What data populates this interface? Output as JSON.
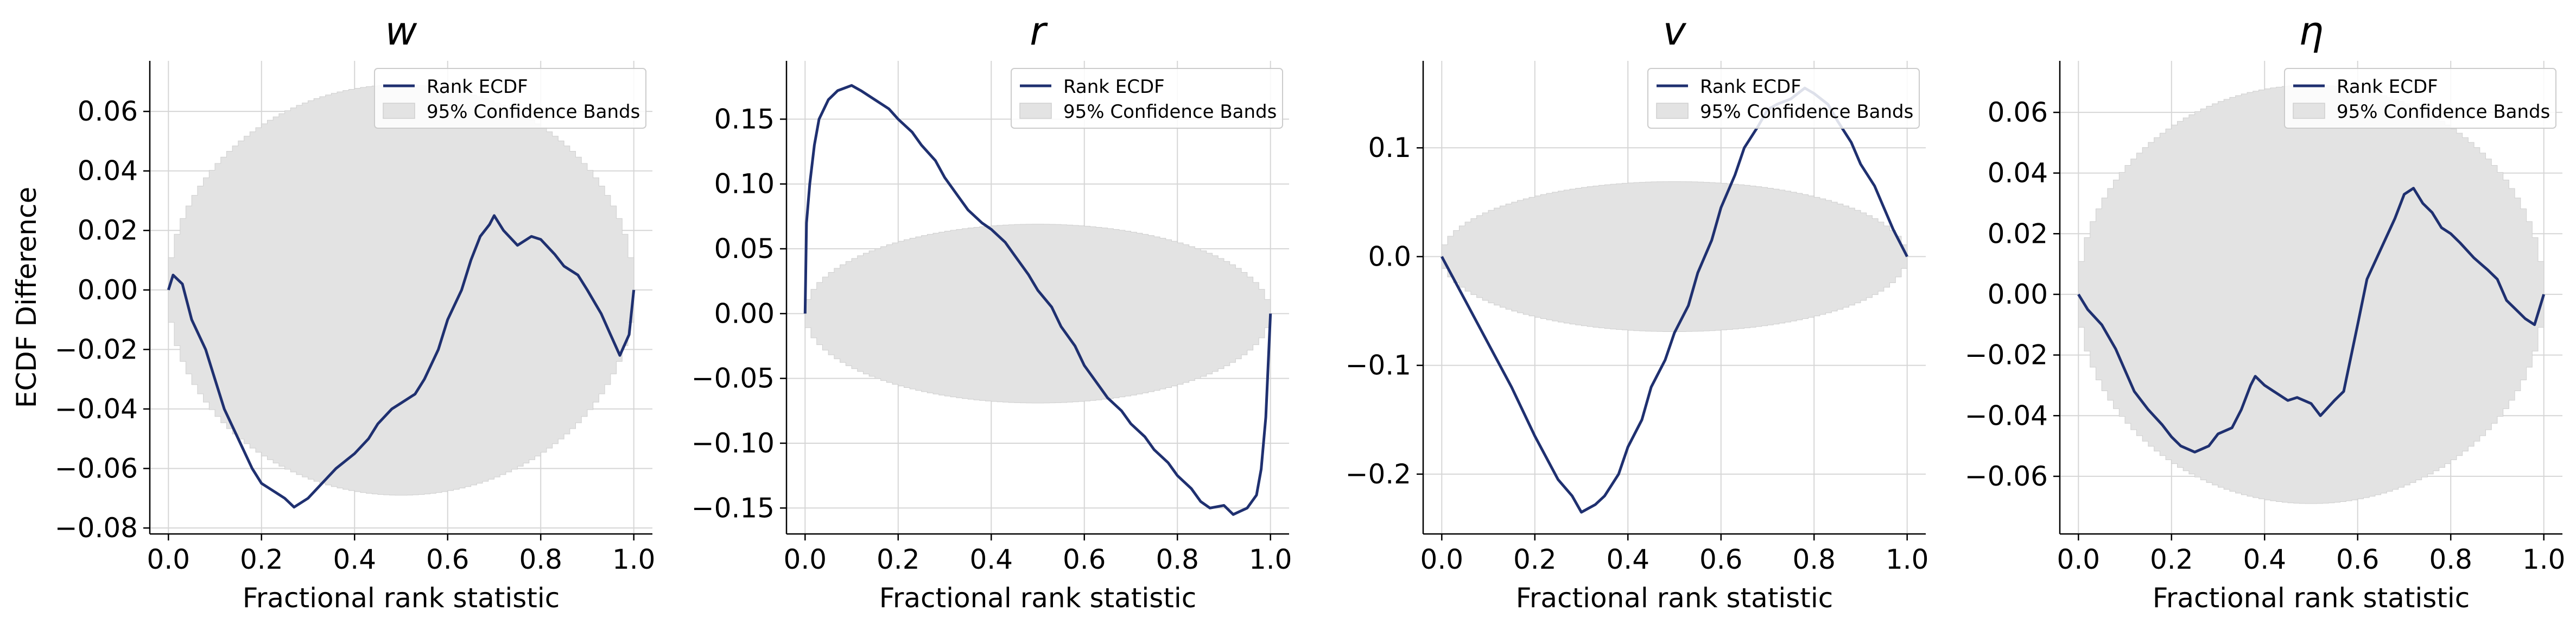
{
  "chart_data": [
    {
      "type": "line",
      "title": "w",
      "xlabel": "Fractional rank statistic",
      "ylabel": "ECDF Difference",
      "xlim": [
        -0.04,
        1.04
      ],
      "ylim": [
        -0.082,
        0.077
      ],
      "xticks": [
        0.0,
        0.2,
        0.4,
        0.6,
        0.8,
        1.0
      ],
      "xtick_labels": [
        "0.0",
        "0.2",
        "0.4",
        "0.6",
        "0.8",
        "1.0"
      ],
      "yticks": [
        -0.08,
        -0.06,
        -0.04,
        -0.02,
        0.0,
        0.02,
        0.04,
        0.06
      ],
      "ytick_labels": [
        "−0.08",
        "−0.06",
        "−0.04",
        "−0.02",
        "0.00",
        "0.02",
        "0.04",
        "0.06"
      ],
      "grid": true,
      "legend_position": "top-right",
      "legend": [
        "Rank ECDF",
        "95% Confidence Bands"
      ],
      "band_halfwidth_max": 0.069,
      "series": [
        {
          "name": "Rank ECDF",
          "x": [
            0,
            0.01,
            0.03,
            0.05,
            0.08,
            0.1,
            0.12,
            0.15,
            0.18,
            0.2,
            0.22,
            0.25,
            0.27,
            0.3,
            0.33,
            0.36,
            0.4,
            0.43,
            0.45,
            0.48,
            0.5,
            0.53,
            0.55,
            0.58,
            0.6,
            0.63,
            0.65,
            0.67,
            0.69,
            0.7,
            0.72,
            0.75,
            0.78,
            0.8,
            0.83,
            0.85,
            0.88,
            0.9,
            0.93,
            0.95,
            0.97,
            0.99,
            1.0
          ],
          "y": [
            0.0,
            0.005,
            0.002,
            -0.01,
            -0.02,
            -0.03,
            -0.04,
            -0.05,
            -0.06,
            -0.065,
            -0.067,
            -0.07,
            -0.073,
            -0.07,
            -0.065,
            -0.06,
            -0.055,
            -0.05,
            -0.045,
            -0.04,
            -0.038,
            -0.035,
            -0.03,
            -0.02,
            -0.01,
            0.0,
            0.01,
            0.018,
            0.022,
            0.025,
            0.02,
            0.015,
            0.018,
            0.017,
            0.012,
            0.008,
            0.005,
            0.0,
            -0.008,
            -0.015,
            -0.022,
            -0.015,
            0.0
          ]
        },
        {
          "name": "95% Confidence Bands",
          "upper": 0.069,
          "lower": -0.069
        }
      ]
    },
    {
      "type": "line",
      "title": "r",
      "xlabel": "Fractional rank statistic",
      "ylabel": "",
      "xlim": [
        -0.04,
        1.04
      ],
      "ylim": [
        -0.17,
        0.195
      ],
      "xticks": [
        0.0,
        0.2,
        0.4,
        0.6,
        0.8,
        1.0
      ],
      "xtick_labels": [
        "0.0",
        "0.2",
        "0.4",
        "0.6",
        "0.8",
        "1.0"
      ],
      "yticks": [
        -0.15,
        -0.1,
        -0.05,
        0.0,
        0.05,
        0.1,
        0.15
      ],
      "ytick_labels": [
        "−0.15",
        "−0.10",
        "−0.05",
        "0.00",
        "0.05",
        "0.10",
        "0.15"
      ],
      "grid": true,
      "legend_position": "top-right",
      "legend": [
        "Rank ECDF",
        "95% Confidence Bands"
      ],
      "band_halfwidth_max": 0.069,
      "series": [
        {
          "name": "Rank ECDF",
          "x": [
            0,
            0.003,
            0.01,
            0.02,
            0.03,
            0.05,
            0.07,
            0.1,
            0.12,
            0.15,
            0.18,
            0.2,
            0.23,
            0.25,
            0.28,
            0.3,
            0.33,
            0.35,
            0.38,
            0.4,
            0.43,
            0.45,
            0.48,
            0.5,
            0.53,
            0.55,
            0.58,
            0.6,
            0.63,
            0.65,
            0.68,
            0.7,
            0.73,
            0.75,
            0.78,
            0.8,
            0.83,
            0.85,
            0.87,
            0.9,
            0.92,
            0.95,
            0.97,
            0.98,
            0.99,
            0.995,
            1.0
          ],
          "y": [
            0.0,
            0.07,
            0.1,
            0.13,
            0.15,
            0.165,
            0.172,
            0.176,
            0.172,
            0.165,
            0.158,
            0.15,
            0.14,
            0.13,
            0.118,
            0.105,
            0.09,
            0.08,
            0.07,
            0.065,
            0.055,
            0.045,
            0.03,
            0.018,
            0.005,
            -0.01,
            -0.025,
            -0.04,
            -0.055,
            -0.065,
            -0.075,
            -0.085,
            -0.095,
            -0.105,
            -0.115,
            -0.125,
            -0.135,
            -0.145,
            -0.15,
            -0.148,
            -0.155,
            -0.15,
            -0.14,
            -0.12,
            -0.08,
            -0.04,
            0.0
          ]
        },
        {
          "name": "95% Confidence Bands",
          "upper": 0.069,
          "lower": -0.069
        }
      ]
    },
    {
      "type": "line",
      "title": "v",
      "xlabel": "Fractional rank statistic",
      "ylabel": "",
      "xlim": [
        -0.04,
        1.04
      ],
      "ylim": [
        -0.255,
        0.18
      ],
      "xticks": [
        0.0,
        0.2,
        0.4,
        0.6,
        0.8,
        1.0
      ],
      "xtick_labels": [
        "0.0",
        "0.2",
        "0.4",
        "0.6",
        "0.8",
        "1.0"
      ],
      "yticks": [
        -0.2,
        -0.1,
        0.0,
        0.1
      ],
      "ytick_labels": [
        "−0.2",
        "−0.1",
        "0.0",
        "0.1"
      ],
      "grid": true,
      "legend_position": "top-right",
      "legend": [
        "Rank ECDF",
        "95% Confidence Bands"
      ],
      "band_halfwidth_max": 0.069,
      "series": [
        {
          "name": "Rank ECDF",
          "x": [
            0,
            0.05,
            0.1,
            0.15,
            0.2,
            0.25,
            0.28,
            0.3,
            0.33,
            0.35,
            0.38,
            0.4,
            0.43,
            0.45,
            0.48,
            0.5,
            0.53,
            0.55,
            0.58,
            0.6,
            0.63,
            0.65,
            0.68,
            0.7,
            0.72,
            0.75,
            0.78,
            0.8,
            0.83,
            0.85,
            0.88,
            0.9,
            0.93,
            0.95,
            0.97,
            1.0
          ],
          "y": [
            0.0,
            -0.04,
            -0.08,
            -0.12,
            -0.165,
            -0.205,
            -0.22,
            -0.235,
            -0.228,
            -0.22,
            -0.2,
            -0.175,
            -0.15,
            -0.12,
            -0.095,
            -0.07,
            -0.045,
            -0.015,
            0.015,
            0.045,
            0.075,
            0.1,
            0.12,
            0.135,
            0.14,
            0.145,
            0.155,
            0.15,
            0.14,
            0.125,
            0.105,
            0.085,
            0.065,
            0.045,
            0.025,
            0.0
          ]
        },
        {
          "name": "95% Confidence Bands",
          "upper": 0.069,
          "lower": -0.069
        }
      ]
    },
    {
      "type": "line",
      "title": "η",
      "xlabel": "Fractional rank statistic",
      "ylabel": "",
      "xlim": [
        -0.04,
        1.04
      ],
      "ylim": [
        -0.079,
        0.077
      ],
      "xticks": [
        0.0,
        0.2,
        0.4,
        0.6,
        0.8,
        1.0
      ],
      "xtick_labels": [
        "0.0",
        "0.2",
        "0.4",
        "0.6",
        "0.8",
        "1.0"
      ],
      "yticks": [
        -0.06,
        -0.04,
        -0.02,
        0.0,
        0.02,
        0.04,
        0.06
      ],
      "ytick_labels": [
        "−0.06",
        "−0.04",
        "−0.02",
        "0.00",
        "0.02",
        "0.04",
        "0.06"
      ],
      "grid": true,
      "legend_position": "top-right",
      "legend": [
        "Rank ECDF",
        "95% Confidence Bands"
      ],
      "band_halfwidth_max": 0.069,
      "series": [
        {
          "name": "Rank ECDF",
          "x": [
            0,
            0.02,
            0.05,
            0.08,
            0.1,
            0.12,
            0.15,
            0.18,
            0.2,
            0.22,
            0.25,
            0.28,
            0.3,
            0.33,
            0.35,
            0.37,
            0.38,
            0.4,
            0.42,
            0.45,
            0.47,
            0.5,
            0.52,
            0.55,
            0.57,
            0.6,
            0.62,
            0.65,
            0.68,
            0.7,
            0.72,
            0.74,
            0.76,
            0.78,
            0.8,
            0.82,
            0.85,
            0.88,
            0.9,
            0.92,
            0.94,
            0.96,
            0.98,
            1.0
          ],
          "y": [
            0.0,
            -0.005,
            -0.01,
            -0.018,
            -0.025,
            -0.032,
            -0.038,
            -0.043,
            -0.047,
            -0.05,
            -0.052,
            -0.05,
            -0.046,
            -0.044,
            -0.038,
            -0.03,
            -0.027,
            -0.03,
            -0.032,
            -0.035,
            -0.034,
            -0.036,
            -0.04,
            -0.035,
            -0.032,
            -0.01,
            0.005,
            0.015,
            0.025,
            0.033,
            0.035,
            0.03,
            0.027,
            0.022,
            0.02,
            0.017,
            0.012,
            0.008,
            0.005,
            -0.002,
            -0.005,
            -0.008,
            -0.01,
            0.0
          ]
        },
        {
          "name": "95% Confidence Bands",
          "upper": 0.069,
          "lower": -0.069
        }
      ]
    }
  ],
  "colors": {
    "line": "#1f3070",
    "band": "#e3e3e3",
    "band_edge": "#cfcfcf",
    "grid": "#d6d6d6",
    "axis": "#000000"
  }
}
